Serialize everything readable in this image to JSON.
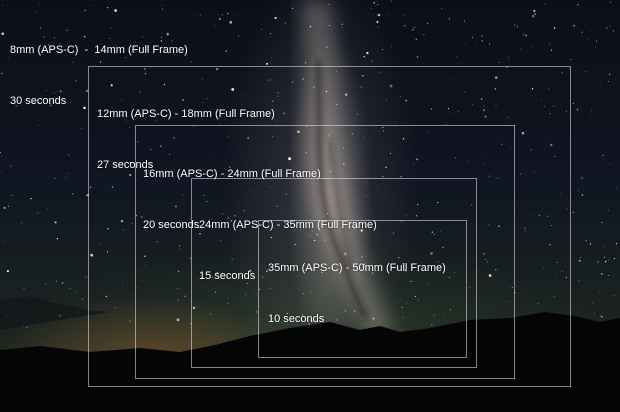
{
  "overlays": [
    {
      "lens": "8mm (APS-C)  -  14mm (Full Frame)",
      "exposure": "30 seconds"
    },
    {
      "lens": "12mm (APS-C) - 18mm (Full Frame)",
      "exposure": "27 seconds"
    },
    {
      "lens": "16mm (APS-C) - 24mm (Full Frame)",
      "exposure": "20 seconds"
    },
    {
      "lens": "24mm (APS-C) - 35mm (Full Frame)",
      "exposure": "15 seconds"
    },
    {
      "lens": "35mm (APS-C) - 50mm (Full Frame)",
      "exposure": "10 seconds"
    }
  ]
}
